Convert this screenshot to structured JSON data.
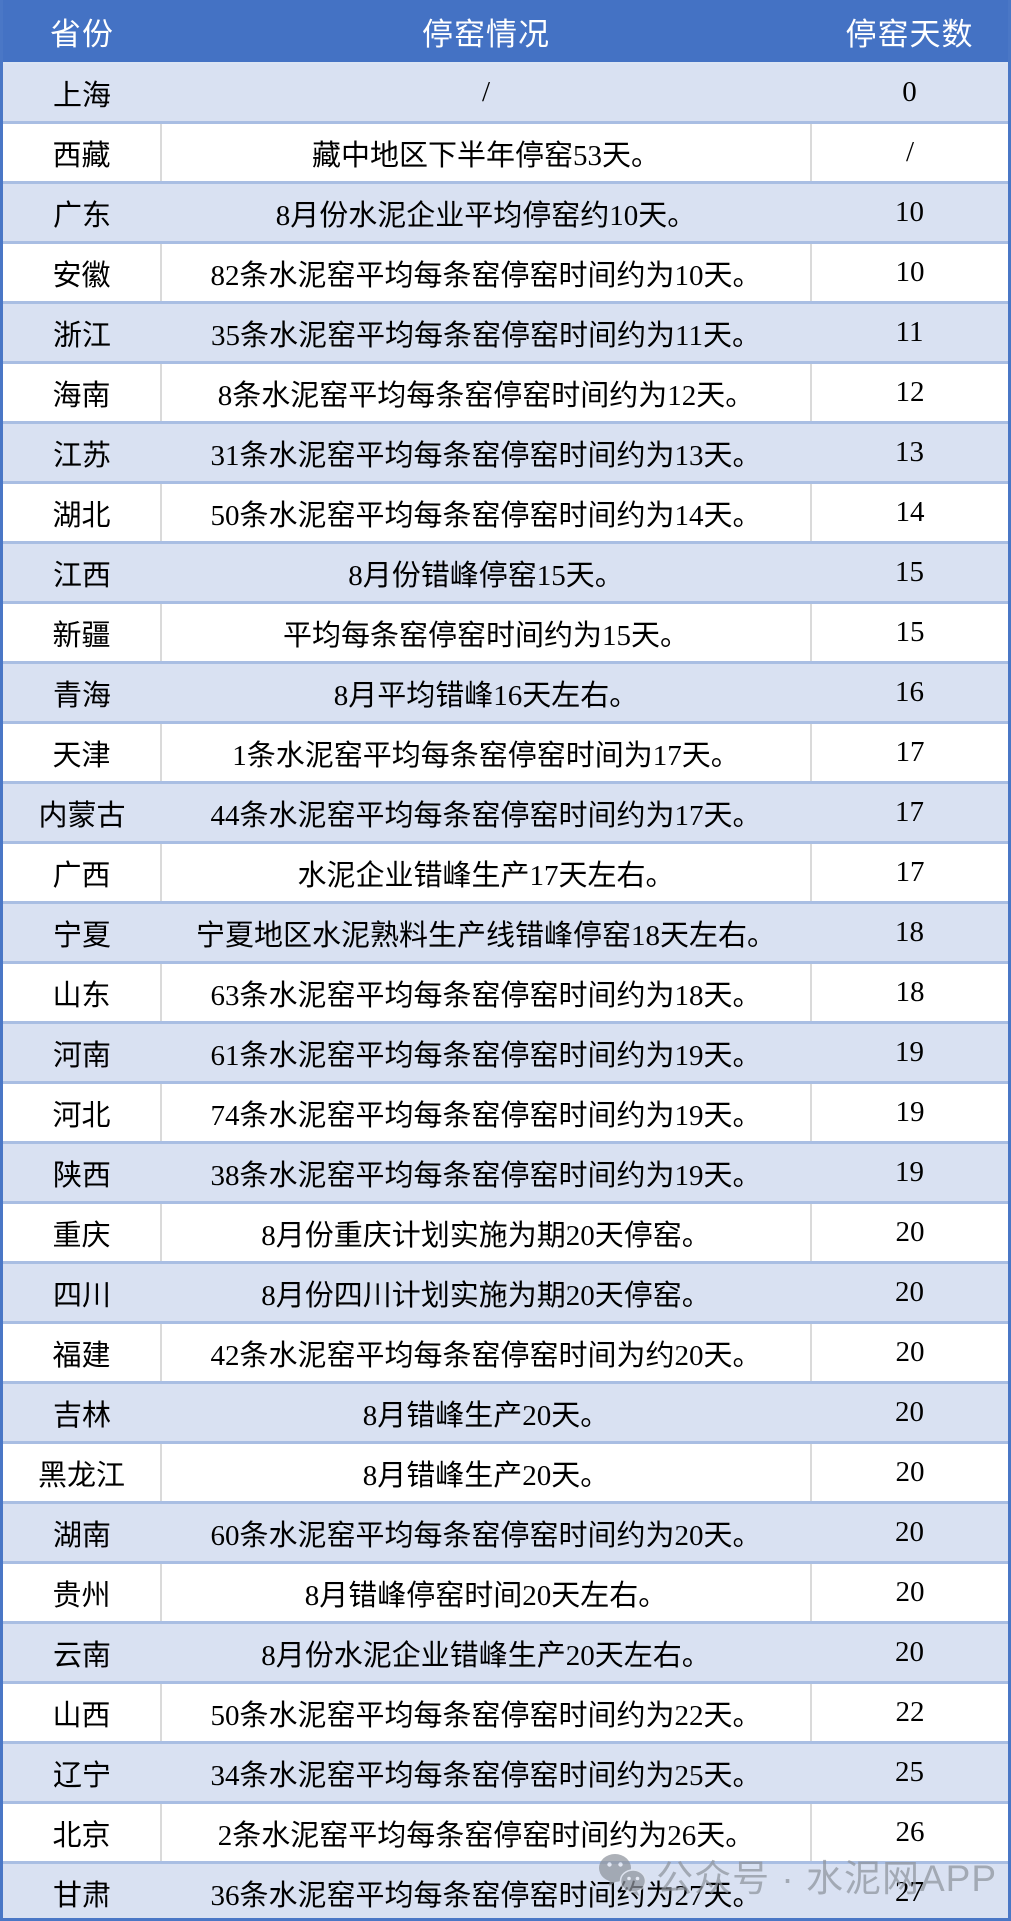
{
  "table": {
    "headers": {
      "province": "省份",
      "situation": "停窑情况",
      "days": "停窑天数"
    },
    "rows": [
      {
        "province": "上海",
        "situation": "/",
        "days": "0"
      },
      {
        "province": "西藏",
        "situation": "藏中地区下半年停窑53天。",
        "days": "/"
      },
      {
        "province": "广东",
        "situation": "8月份水泥企业平均停窑约10天。",
        "days": "10"
      },
      {
        "province": "安徽",
        "situation": "82条水泥窑平均每条窑停窑时间约为10天。",
        "days": "10"
      },
      {
        "province": "浙江",
        "situation": "35条水泥窑平均每条窑停窑时间约为11天。",
        "days": "11"
      },
      {
        "province": "海南",
        "situation": "8条水泥窑平均每条窑停窑时间约为12天。",
        "days": "12"
      },
      {
        "province": "江苏",
        "situation": "31条水泥窑平均每条窑停窑时间约为13天。",
        "days": "13"
      },
      {
        "province": "湖北",
        "situation": "50条水泥窑平均每条窑停窑时间约为14天。",
        "days": "14"
      },
      {
        "province": "江西",
        "situation": "8月份错峰停窑15天。",
        "days": "15"
      },
      {
        "province": "新疆",
        "situation": "平均每条窑停窑时间约为15天。",
        "days": "15"
      },
      {
        "province": "青海",
        "situation": "8月平均错峰16天左右。",
        "days": "16"
      },
      {
        "province": "天津",
        "situation": "1条水泥窑平均每条窑停窑时间为17天。",
        "days": "17"
      },
      {
        "province": "内蒙古",
        "situation": "44条水泥窑平均每条窑停窑时间约为17天。",
        "days": "17"
      },
      {
        "province": "广西",
        "situation": "水泥企业错峰生产17天左右。",
        "days": "17"
      },
      {
        "province": "宁夏",
        "situation": "宁夏地区水泥熟料生产线错峰停窑18天左右。",
        "days": "18"
      },
      {
        "province": "山东",
        "situation": "63条水泥窑平均每条窑停窑时间约为18天。",
        "days": "18"
      },
      {
        "province": "河南",
        "situation": "61条水泥窑平均每条窑停窑时间约为19天。",
        "days": "19"
      },
      {
        "province": "河北",
        "situation": "74条水泥窑平均每条窑停窑时间约为19天。",
        "days": "19"
      },
      {
        "province": "陕西",
        "situation": "38条水泥窑平均每条窑停窑时间约为19天。",
        "days": "19"
      },
      {
        "province": "重庆",
        "situation": "8月份重庆计划实施为期20天停窑。",
        "days": "20"
      },
      {
        "province": "四川",
        "situation": "8月份四川计划实施为期20天停窑。",
        "days": "20"
      },
      {
        "province": "福建",
        "situation": "42条水泥窑平均每条窑停窑时间为约20天。",
        "days": "20"
      },
      {
        "province": "吉林",
        "situation": "8月错峰生产20天。",
        "days": "20"
      },
      {
        "province": "黑龙江",
        "situation": "8月错峰生产20天。",
        "days": "20"
      },
      {
        "province": "湖南",
        "situation": "60条水泥窑平均每条窑停窑时间约为20天。",
        "days": "20"
      },
      {
        "province": "贵州",
        "situation": "8月错峰停窑时间20天左右。",
        "days": "20"
      },
      {
        "province": "云南",
        "situation": "8月份水泥企业错峰生产20天左右。",
        "days": "20"
      },
      {
        "province": "山西",
        "situation": "50条水泥窑平均每条窑停窑时间约为22天。",
        "days": "22"
      },
      {
        "province": "辽宁",
        "situation": "34条水泥窑平均每条窑停窑时间约为25天。",
        "days": "25"
      },
      {
        "province": "北京",
        "situation": "2条水泥窑平均每条窑停窑时间约为26天。",
        "days": "26"
      },
      {
        "province": "甘肃",
        "situation": "36条水泥窑平均每条窑停窑时间约为27天。",
        "days": "27"
      }
    ]
  },
  "watermark": {
    "icon": "wechat-icon",
    "text": "公众号 · 水泥网APP"
  },
  "colors": {
    "header_bg": "#4472c4",
    "header_text": "#ffffff",
    "band_row_bg": "#d9e1f2",
    "plain_row_bg": "#ffffff",
    "row_separator": "#a9bee3",
    "outer_border": "#4a77c6",
    "column_divider": "#dadada",
    "watermark_gray": "#8e949d"
  },
  "chart_data": {
    "type": "table",
    "title": "",
    "columns": [
      "省份",
      "停窑情况",
      "停窑天数"
    ],
    "rows": [
      [
        "上海",
        "/",
        "0"
      ],
      [
        "西藏",
        "藏中地区下半年停窑53天。",
        "/"
      ],
      [
        "广东",
        "8月份水泥企业平均停窑约10天。",
        "10"
      ],
      [
        "安徽",
        "82条水泥窑平均每条窑停窑时间约为10天。",
        "10"
      ],
      [
        "浙江",
        "35条水泥窑平均每条窑停窑时间约为11天。",
        "11"
      ],
      [
        "海南",
        "8条水泥窑平均每条窑停窑时间约为12天。",
        "12"
      ],
      [
        "江苏",
        "31条水泥窑平均每条窑停窑时间约为13天。",
        "13"
      ],
      [
        "湖北",
        "50条水泥窑平均每条窑停窑时间约为14天。",
        "14"
      ],
      [
        "江西",
        "8月份错峰停窑15天。",
        "15"
      ],
      [
        "新疆",
        "平均每条窑停窑时间约为15天。",
        "15"
      ],
      [
        "青海",
        "8月平均错峰16天左右。",
        "16"
      ],
      [
        "天津",
        "1条水泥窑平均每条窑停窑时间为17天。",
        "17"
      ],
      [
        "内蒙古",
        "44条水泥窑平均每条窑停窑时间约为17天。",
        "17"
      ],
      [
        "广西",
        "水泥企业错峰生产17天左右。",
        "17"
      ],
      [
        "宁夏",
        "宁夏地区水泥熟料生产线错峰停窑18天左右。",
        "18"
      ],
      [
        "山东",
        "63条水泥窑平均每条窑停窑时间约为18天。",
        "18"
      ],
      [
        "河南",
        "61条水泥窑平均每条窑停窑时间约为19天。",
        "19"
      ],
      [
        "河北",
        "74条水泥窑平均每条窑停窑时间约为19天。",
        "19"
      ],
      [
        "陕西",
        "38条水泥窑平均每条窑停窑时间约为19天。",
        "19"
      ],
      [
        "重庆",
        "8月份重庆计划实施为期20天停窑。",
        "20"
      ],
      [
        "四川",
        "8月份四川计划实施为期20天停窑。",
        "20"
      ],
      [
        "福建",
        "42条水泥窑平均每条窑停窑时间为约20天。",
        "20"
      ],
      [
        "吉林",
        "8月错峰生产20天。",
        "20"
      ],
      [
        "黑龙江",
        "8月错峰生产20天。",
        "20"
      ],
      [
        "湖南",
        "60条水泥窑平均每条窑停窑时间约为20天。",
        "20"
      ],
      [
        "贵州",
        "8月错峰停窑时间20天左右。",
        "20"
      ],
      [
        "云南",
        "8月份水泥企业错峰生产20天左右。",
        "20"
      ],
      [
        "山西",
        "50条水泥窑平均每条窑停窑时间约为22天。",
        "22"
      ],
      [
        "辽宁",
        "34条水泥窑平均每条窑停窑时间约为25天。",
        "25"
      ],
      [
        "北京",
        "2条水泥窑平均每条窑停窑时间约为26天。",
        "26"
      ],
      [
        "甘肃",
        "36条水泥窑平均每条窑停窑时间约为27天。",
        "27"
      ]
    ]
  }
}
